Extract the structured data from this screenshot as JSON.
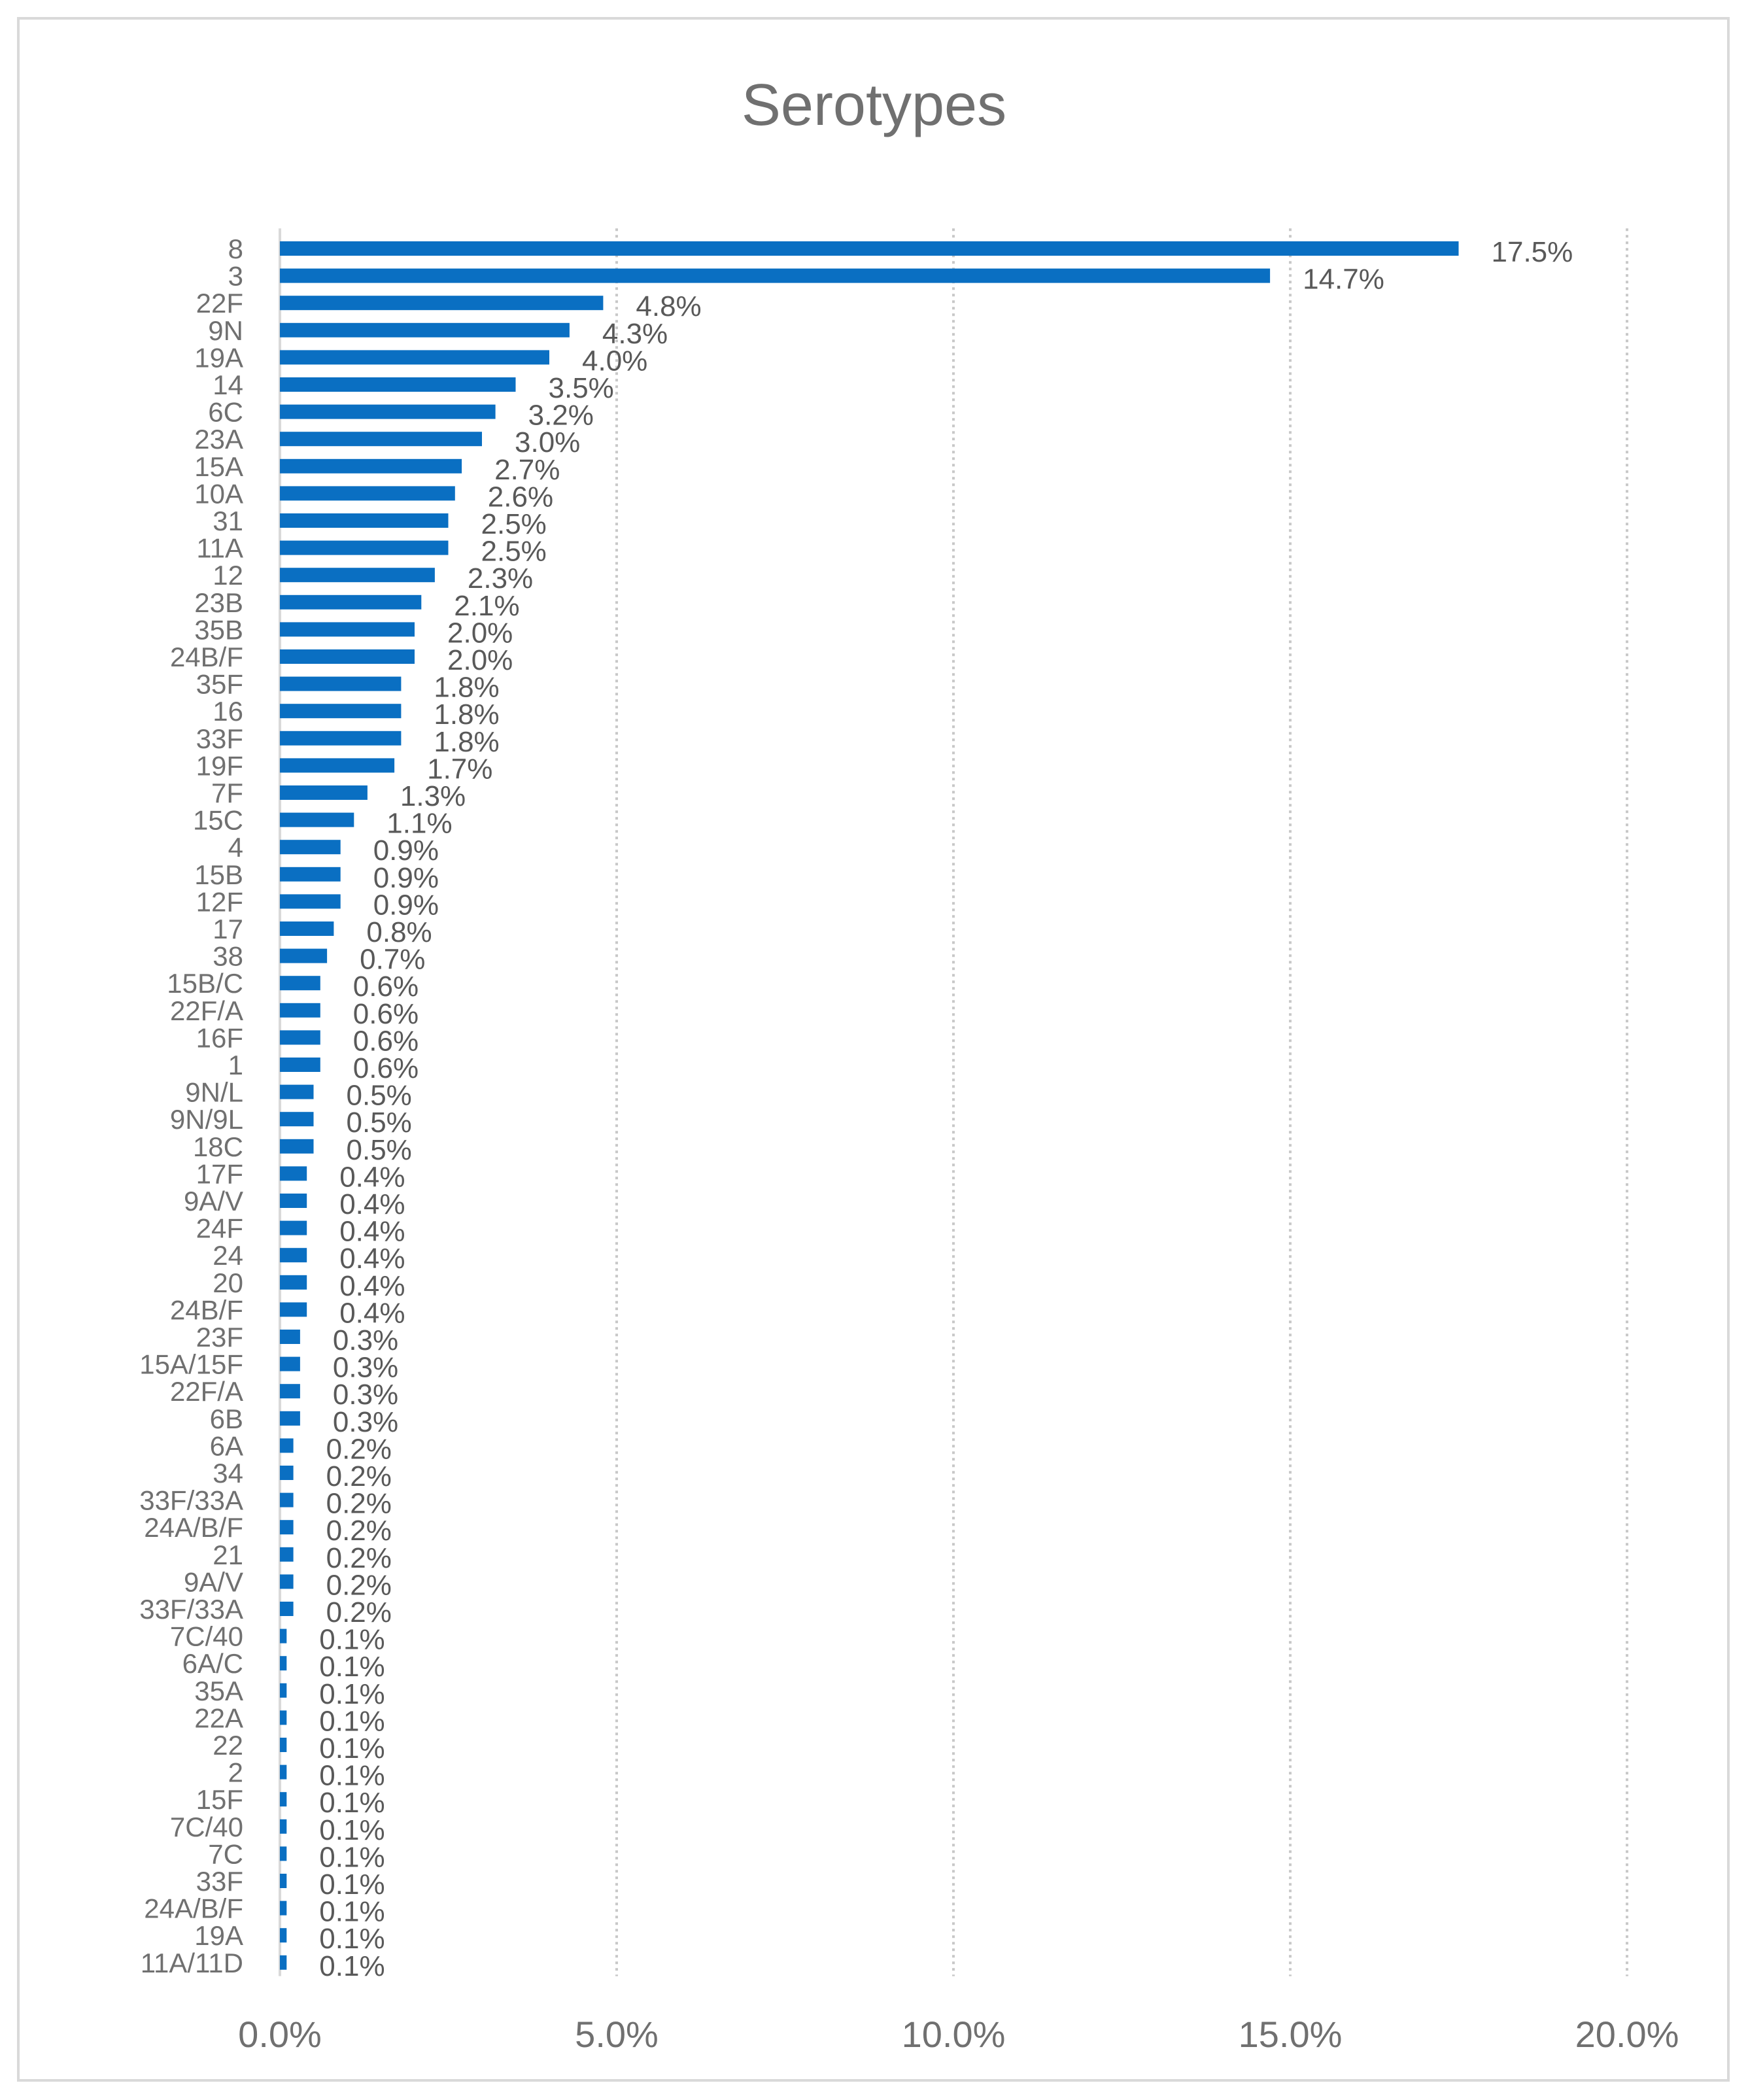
{
  "chart_data": {
    "type": "bar",
    "orientation": "horizontal",
    "title": "Serotypes",
    "xlabel": "",
    "ylabel": "",
    "xlim": [
      0,
      20
    ],
    "xticks": [
      "0.0%",
      "5.0%",
      "10.0%",
      "15.0%",
      "20.0%"
    ],
    "grid": "vertical-dotted",
    "bar_color": "#0A6FC2",
    "categories": [
      "8",
      "3",
      "22F",
      "9N",
      "19A",
      "14",
      "6C",
      "23A",
      "15A",
      "10A",
      "31",
      "11A",
      "12",
      "23B",
      "35B",
      "24B/F",
      "35F",
      "16",
      "33F",
      "19F",
      "7F",
      "15C",
      "4",
      "15B",
      "12F",
      "17",
      "38",
      "15B/C",
      "22F/A",
      "16F",
      "1",
      "9N/L",
      "9N/9L",
      "18C",
      "17F",
      "9A/V",
      "24F",
      "24",
      "20",
      "24B/F",
      "23F",
      "15A/15F",
      "22F/A",
      "6B",
      "6A",
      "34",
      "33F/33A",
      "24A/B/F",
      "21",
      "9A/V",
      "33F/33A",
      "7C/40",
      "6A/C",
      "35A",
      "22A",
      "22",
      "2",
      "15F",
      "7C/40",
      "7C",
      "33F",
      "24A/B/F",
      "19A",
      "11A/11D"
    ],
    "values": [
      17.5,
      14.7,
      4.8,
      4.3,
      4.0,
      3.5,
      3.2,
      3.0,
      2.7,
      2.6,
      2.5,
      2.5,
      2.3,
      2.1,
      2.0,
      2.0,
      1.8,
      1.8,
      1.8,
      1.7,
      1.3,
      1.1,
      0.9,
      0.9,
      0.9,
      0.8,
      0.7,
      0.6,
      0.6,
      0.6,
      0.6,
      0.5,
      0.5,
      0.5,
      0.4,
      0.4,
      0.4,
      0.4,
      0.4,
      0.4,
      0.3,
      0.3,
      0.3,
      0.3,
      0.2,
      0.2,
      0.2,
      0.2,
      0.2,
      0.2,
      0.2,
      0.1,
      0.1,
      0.1,
      0.1,
      0.1,
      0.1,
      0.1,
      0.1,
      0.1,
      0.1,
      0.1,
      0.1,
      0.1
    ],
    "data_labels": [
      "17.5%",
      "14.7%",
      "4.8%",
      "4.3%",
      "4.0%",
      "3.5%",
      "3.2%",
      "3.0%",
      "2.7%",
      "2.6%",
      "2.5%",
      "2.5%",
      "2.3%",
      "2.1%",
      "2.0%",
      "2.0%",
      "1.8%",
      "1.8%",
      "1.8%",
      "1.7%",
      "1.3%",
      "1.1%",
      "0.9%",
      "0.9%",
      "0.9%",
      "0.8%",
      "0.7%",
      "0.6%",
      "0.6%",
      "0.6%",
      "0.6%",
      "0.5%",
      "0.5%",
      "0.5%",
      "0.4%",
      "0.4%",
      "0.4%",
      "0.4%",
      "0.4%",
      "0.4%",
      "0.3%",
      "0.3%",
      "0.3%",
      "0.3%",
      "0.2%",
      "0.2%",
      "0.2%",
      "0.2%",
      "0.2%",
      "0.2%",
      "0.2%",
      "0.1%",
      "0.1%",
      "0.1%",
      "0.1%",
      "0.1%",
      "0.1%",
      "0.1%",
      "0.1%",
      "0.1%",
      "0.1%",
      "0.1%",
      "0.1%",
      "0.1%"
    ]
  }
}
